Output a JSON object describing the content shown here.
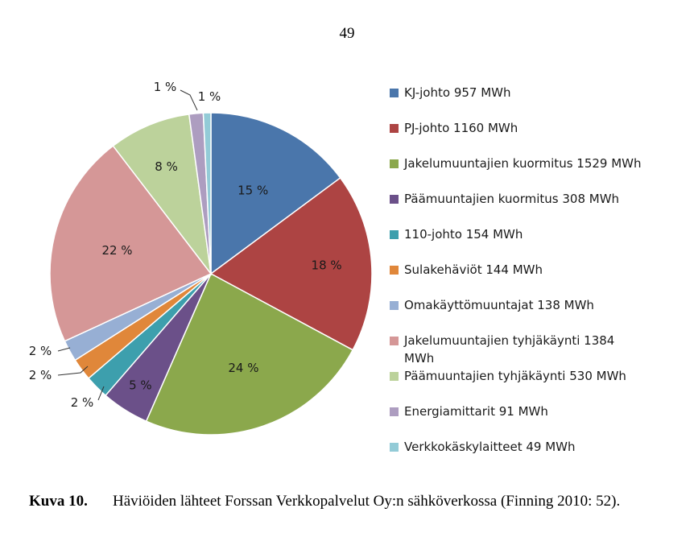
{
  "page_number": "49",
  "caption": {
    "number": "Kuva 10.",
    "text": "Häviöiden lähteet Forssan Verkkopalvelut Oy:n sähköverkossa (Finning 2010: 52)."
  },
  "chart_data": {
    "type": "pie",
    "unit": "MWh",
    "slices": [
      {
        "legend": "KJ-johto 957 MWh",
        "value": 957,
        "label": "15 %",
        "color": "#4a76ab"
      },
      {
        "legend": "PJ-johto 1160 MWh",
        "value": 1160,
        "label": "18 %",
        "color": "#ad4443"
      },
      {
        "legend": "Jakelumuuntajien kuormitus 1529 MWh",
        "value": 1529,
        "label": "24 %",
        "color": "#8ba84c"
      },
      {
        "legend": "Päämuuntajien kuormitus 308 MWh",
        "value": 308,
        "label": "5 %",
        "color": "#6b5089"
      },
      {
        "legend": "110-johto 154 MWh",
        "value": 154,
        "label": "2 %",
        "color": "#3d9fad"
      },
      {
        "legend": "Sulakehäviöt 144 MWh",
        "value": 144,
        "label": "2 %",
        "color": "#e0873a"
      },
      {
        "legend": "Omakäyttömuuntajat 138 MWh",
        "value": 138,
        "label": "2 %",
        "color": "#97afd4"
      },
      {
        "legend": "Jakelumuuntajien tyhjäkäynti 1384 MWh",
        "value": 1384,
        "label": "22 %",
        "color": "#d59797"
      },
      {
        "legend": "Päämuuntajien tyhjäkäynti 530 MWh",
        "value": 530,
        "label": "8 %",
        "color": "#bcd29b"
      },
      {
        "legend": "Energiamittarit 91 MWh",
        "value": 91,
        "label": "1 %",
        "color": "#ad9dc0"
      },
      {
        "legend": "Verkkokäskylaitteet 49 MWh",
        "value": 49,
        "label": "1 %",
        "color": "#93cbd7"
      }
    ],
    "legend_position": "right"
  }
}
